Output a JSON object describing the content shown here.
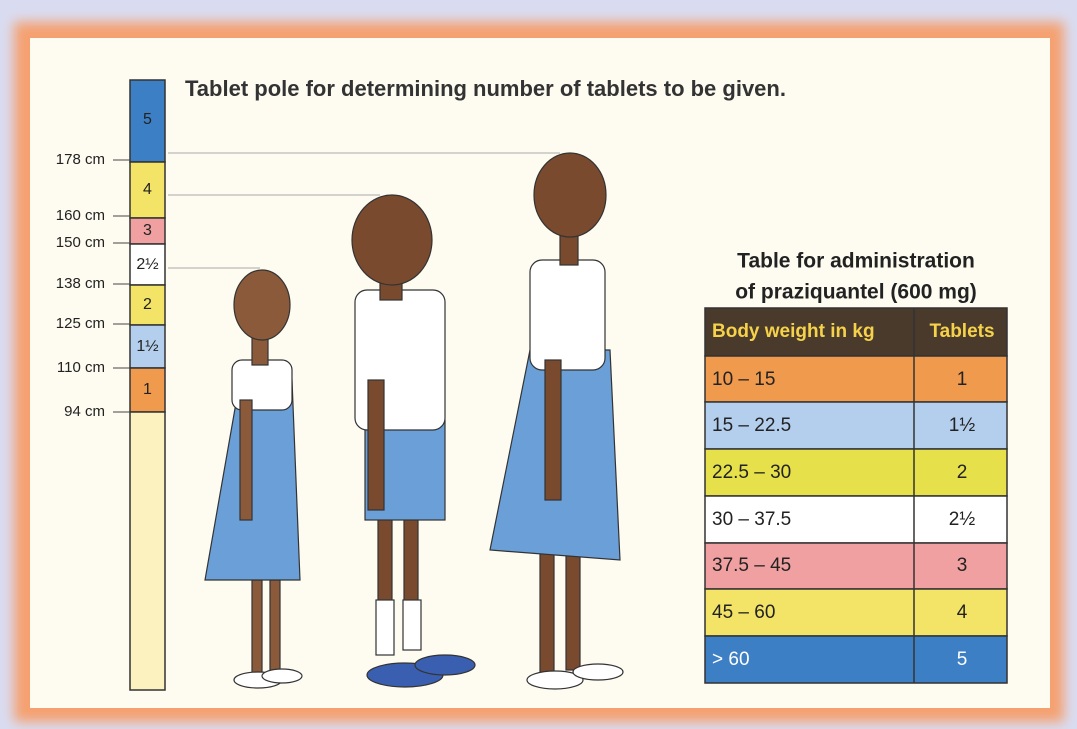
{
  "title": "Tablet pole for determining number of tablets to be given.",
  "pole": {
    "segments": [
      "5",
      "4",
      "3",
      "2½",
      "2",
      "1½",
      "1"
    ],
    "heights": [
      "178 cm",
      "160 cm",
      "150 cm",
      "138 cm",
      "125 cm",
      "110 cm",
      "94 cm"
    ]
  },
  "table": {
    "title": [
      "Table for administration",
      "of praziquantel (600 mg)"
    ],
    "header": [
      "Body weight in kg",
      "Tablets"
    ],
    "rows": [
      [
        "10 – 15",
        "1"
      ],
      [
        "15 – 22.5",
        "1½"
      ],
      [
        "22.5 – 30",
        "2"
      ],
      [
        "30 – 37.5",
        "2½"
      ],
      [
        "37.5 – 45",
        "3"
      ],
      [
        "45 – 60",
        "4"
      ],
      [
        "> 60",
        "5"
      ]
    ]
  }
}
